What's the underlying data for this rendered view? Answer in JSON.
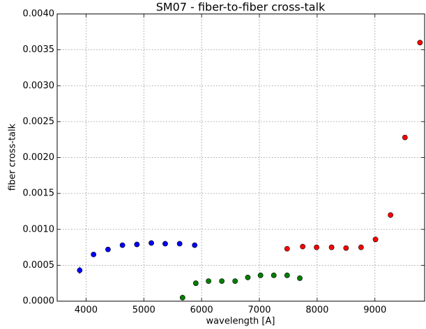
{
  "chart_data": {
    "type": "scatter",
    "title": "SM07 - fiber-to-fiber cross-talk",
    "x_label": "wavelength [A]",
    "y_label": "fiber cross-talk",
    "xlim": [
      3500,
      9860
    ],
    "ylim": [
      0,
      0.004
    ],
    "xticks": [
      4000,
      5000,
      6000,
      7000,
      8000,
      9000
    ],
    "yticks": [
      {
        "value": 0,
        "label": "0.0000"
      },
      {
        "value": 0.0005,
        "label": "0.0005"
      },
      {
        "value": 0.001,
        "label": "0.0010"
      },
      {
        "value": 0.0015,
        "label": "0.0015"
      },
      {
        "value": 0.002,
        "label": "0.0020"
      },
      {
        "value": 0.0025,
        "label": "0.0025"
      },
      {
        "value": 0.003,
        "label": "0.0030"
      },
      {
        "value": 0.0035,
        "label": "0.0035"
      },
      {
        "value": 0.004,
        "label": "0.0040"
      }
    ],
    "grid": true,
    "series": [
      {
        "color": "#0000ff",
        "x": [
          3890,
          4130,
          4380,
          4630,
          4880,
          5130,
          5370,
          5620,
          5880
        ],
        "values": [
          0.00043,
          0.00065,
          0.00072,
          0.00078,
          0.00079,
          0.00081,
          0.0008,
          0.0008,
          0.00078
        ],
        "errors": [
          5e-05,
          2e-05,
          2e-05,
          2e-05,
          2e-05,
          2e-05,
          2e-05,
          2e-05,
          2e-05
        ]
      },
      {
        "color": "#007f00",
        "x": [
          5670,
          5900,
          6120,
          6350,
          6580,
          6800,
          7020,
          7250,
          7480,
          7700
        ],
        "values": [
          5e-05,
          0.00025,
          0.00028,
          0.00028,
          0.00028,
          0.00033,
          0.00036,
          0.00036,
          0.00036,
          0.00032
        ],
        "errors": [
          4e-05,
          2e-05,
          2e-05,
          2e-05,
          2e-05,
          2e-05,
          2e-05,
          2e-05,
          2e-05,
          2e-05
        ]
      },
      {
        "color": "#ff0000",
        "x": [
          7480,
          7750,
          7990,
          8250,
          8500,
          8760,
          9010,
          9270,
          9520,
          9780
        ],
        "values": [
          0.00073,
          0.00076,
          0.00075,
          0.00075,
          0.00074,
          0.00075,
          0.00086,
          0.0012,
          0.00228,
          0.0036
        ],
        "errors": [
          2e-05,
          2e-05,
          2e-05,
          2e-05,
          2e-05,
          2e-05,
          2e-05,
          2e-05,
          2e-05,
          2e-05
        ]
      }
    ]
  }
}
